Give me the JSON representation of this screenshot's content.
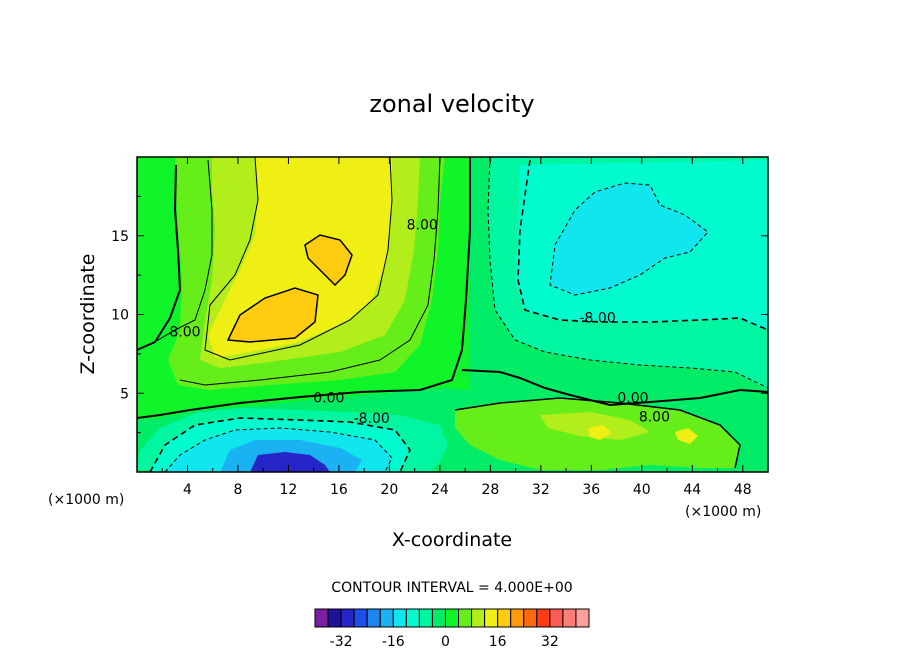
{
  "chart_data": {
    "type": "heatmap",
    "title": "zonal velocity",
    "xlabel": "X-coordinate",
    "ylabel": "Z-coordinate",
    "x_unit": "(×1000 m)",
    "y_unit": "(×1000 m)",
    "xlim": [
      0,
      50
    ],
    "ylim": [
      0,
      20
    ],
    "x_ticks": [
      "4",
      "8",
      "12",
      "16",
      "20",
      "24",
      "28",
      "32",
      "36",
      "40",
      "44",
      "48"
    ],
    "y_ticks": [
      "5",
      "10",
      "15"
    ],
    "contour_interval_text": "CONTOUR INTERVAL = 4.000E+00",
    "contour_labels": [
      {
        "text": "8.00",
        "x": 3.8,
        "z": 8.6
      },
      {
        "text": "8.00",
        "x": 22.6,
        "z": 15.4
      },
      {
        "text": "0.00",
        "x": 15.2,
        "z": 4.4
      },
      {
        "text": "-8.00",
        "x": 18.6,
        "z": 3.1
      },
      {
        "text": "-8.00",
        "x": 36.5,
        "z": 9.5
      },
      {
        "text": "0.00",
        "x": 39.3,
        "z": 4.4
      },
      {
        "text": "8.00",
        "x": 41.0,
        "z": 3.2
      }
    ],
    "features": [
      {
        "kind": "max",
        "x": 12,
        "z": 10,
        "value": 24
      },
      {
        "kind": "max",
        "x": 16,
        "z": 13.5,
        "value": 24
      },
      {
        "kind": "min",
        "x": 13,
        "z": 0.5,
        "value": -28
      },
      {
        "kind": "min",
        "x": 38,
        "z": 15,
        "value": -16
      }
    ],
    "colorbar": {
      "ticks": [
        "-32",
        "-16",
        "0",
        "16",
        "32"
      ],
      "levels": [
        -36,
        -32,
        -28,
        -24,
        -20,
        -16,
        -12,
        -8,
        -4,
        0,
        4,
        8,
        12,
        16,
        20,
        24,
        28,
        32,
        36
      ],
      "colors": [
        "#7a1fa2",
        "#1d1398",
        "#2525c8",
        "#1c4fe8",
        "#1e84f0",
        "#1ab2f2",
        "#11e6ef",
        "#00fbcf",
        "#00f6a0",
        "#00ec66",
        "#0ff52a",
        "#66ee1b",
        "#b1ee1c",
        "#efef13",
        "#ffcc10",
        "#ff9b0f",
        "#ff6a0c",
        "#ff3a17",
        "#ff5a55",
        "#ff7e79",
        "#ff9f9a"
      ]
    }
  }
}
